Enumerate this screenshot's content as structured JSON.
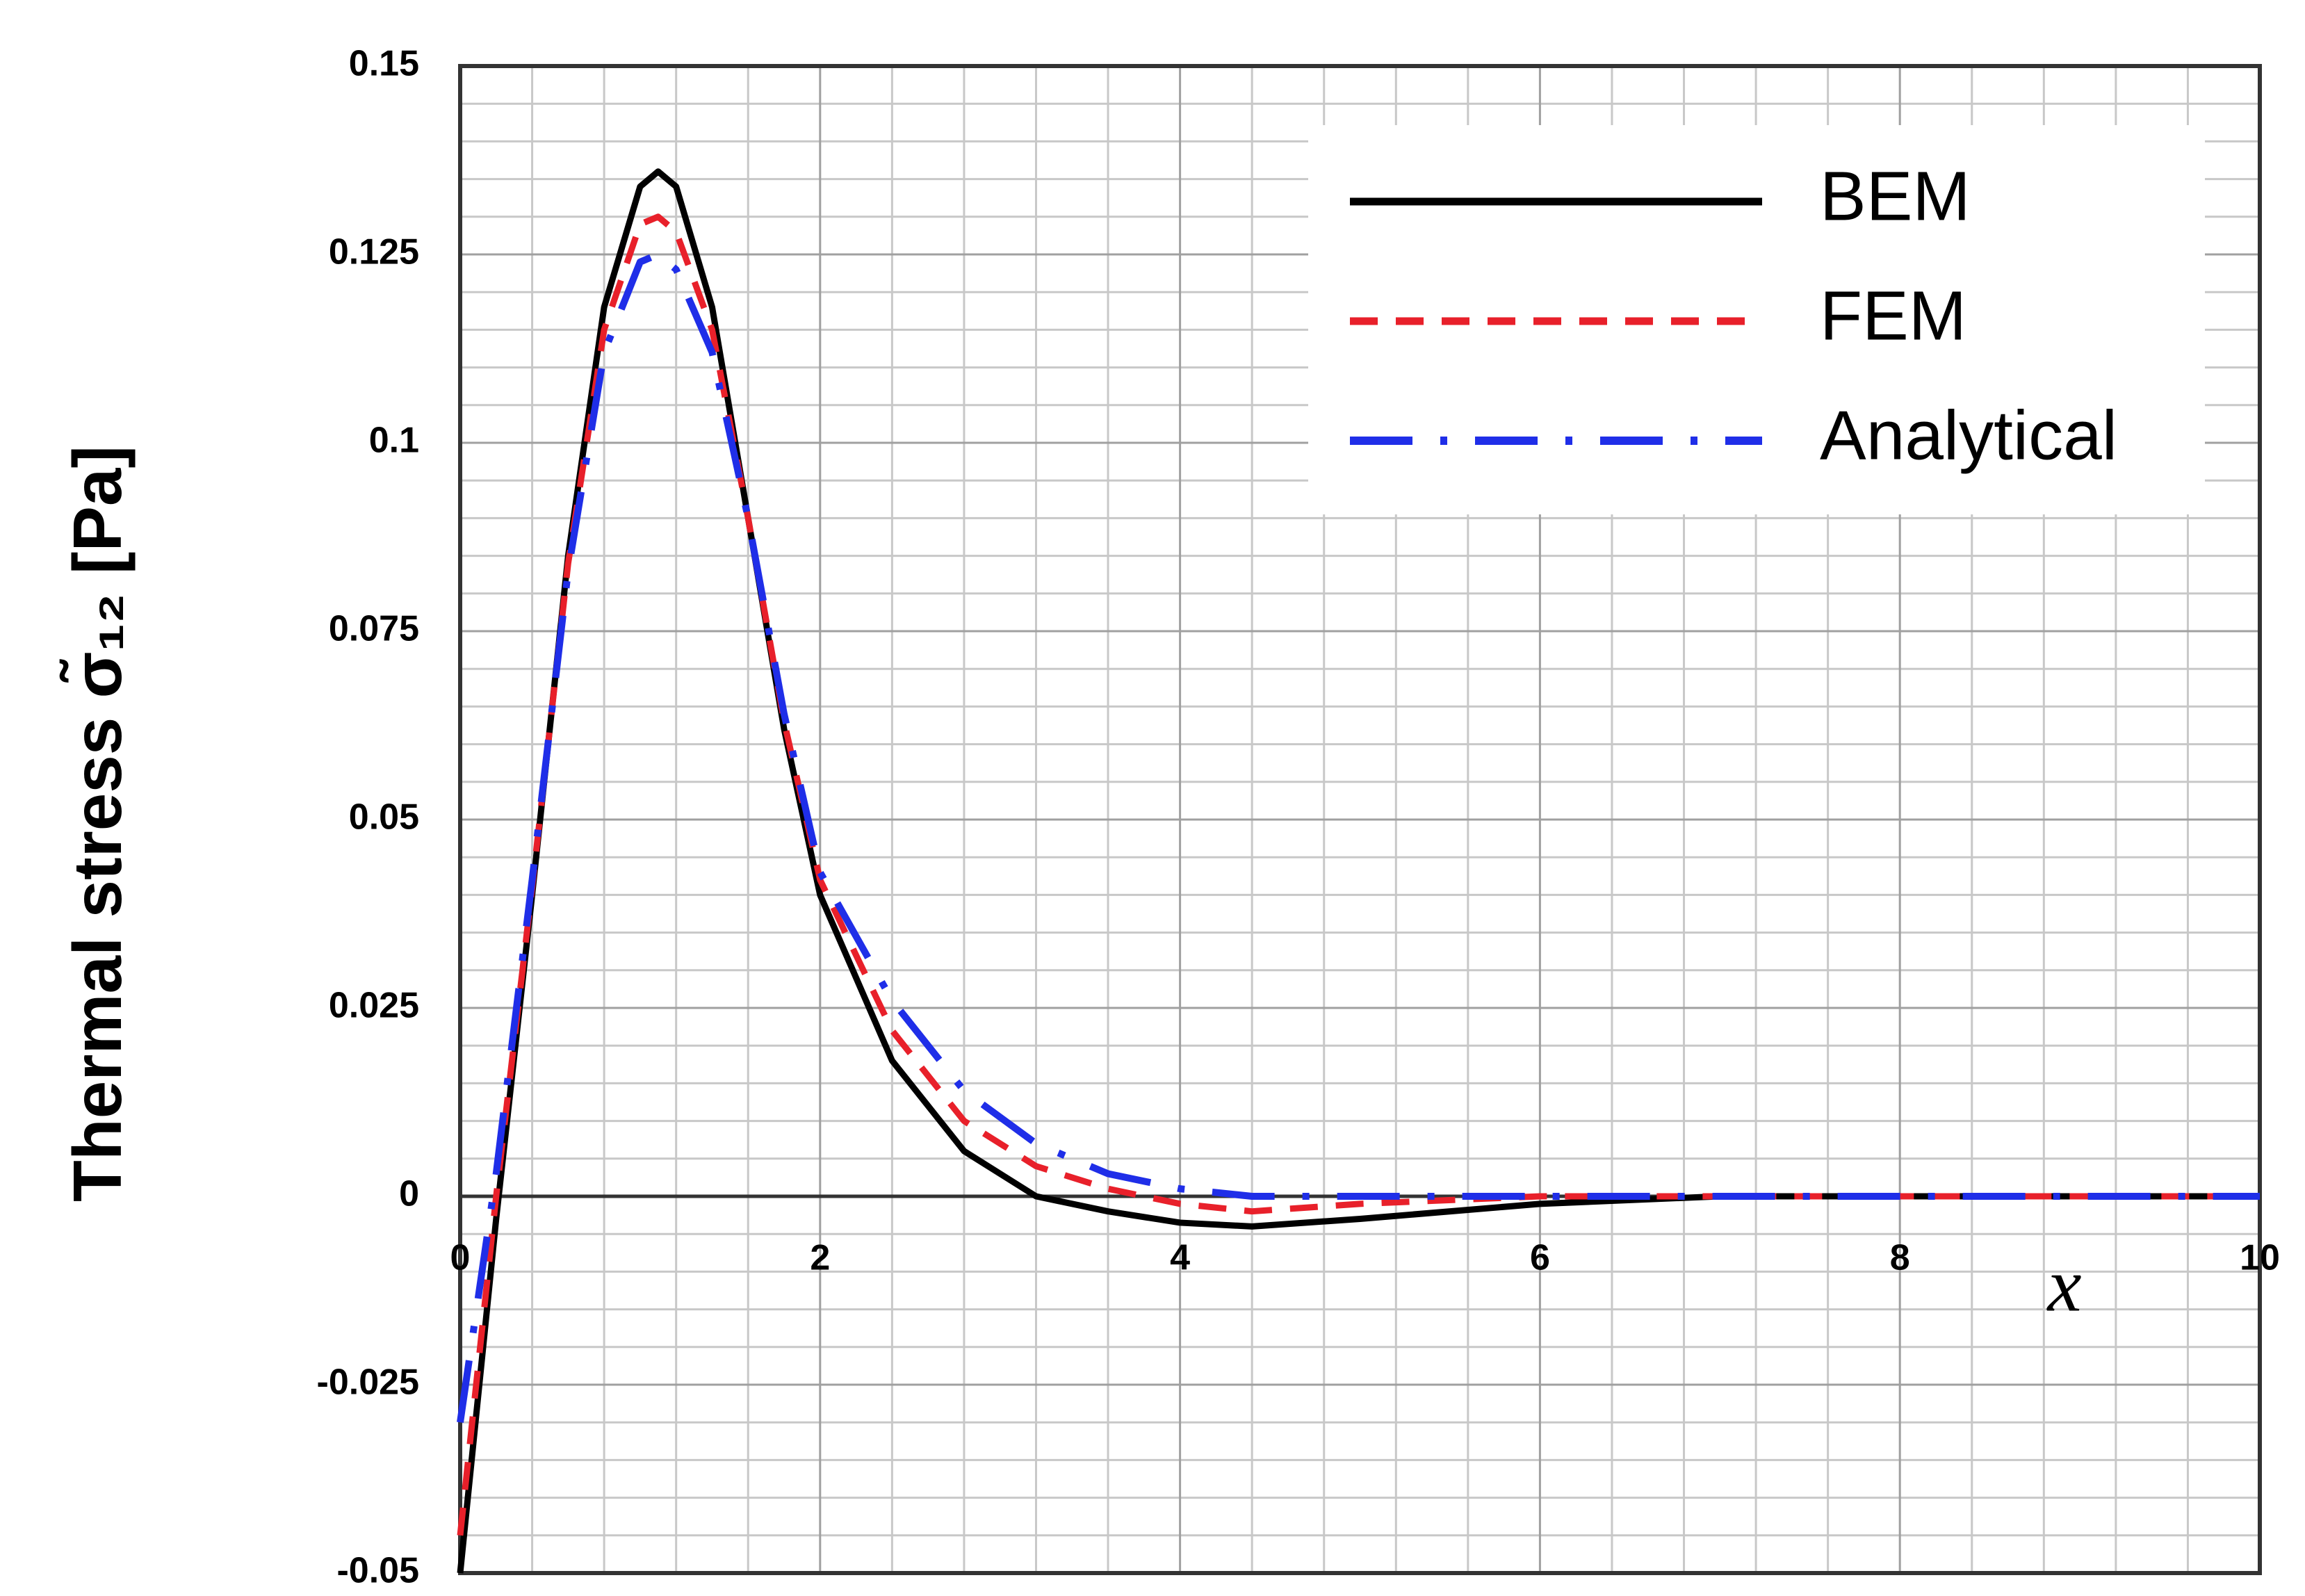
{
  "chart_data": {
    "type": "line",
    "y_label": "Thermal stress σ̃₁₂ [Pa]",
    "x_label": "x",
    "x": [
      0,
      0.2,
      0.4,
      0.6,
      0.8,
      1.0,
      1.1,
      1.2,
      1.4,
      1.6,
      1.8,
      2.0,
      2.4,
      2.8,
      3.2,
      3.6,
      4.0,
      4.4,
      5,
      6,
      7,
      8,
      9,
      10
    ],
    "series": [
      {
        "name": "BEM",
        "color": "#000000",
        "values": [
          -0.05,
          -0.003,
          0.04,
          0.085,
          0.118,
          0.134,
          0.136,
          0.134,
          0.118,
          0.09,
          0.062,
          0.04,
          0.018,
          0.006,
          0.0,
          -0.002,
          -0.0035,
          -0.004,
          -0.003,
          -0.001,
          0,
          0,
          0,
          0
        ]
      },
      {
        "name": "FEM",
        "color": "#e8202a",
        "values": [
          -0.045,
          0.0,
          0.041,
          0.084,
          0.115,
          0.129,
          0.13,
          0.128,
          0.115,
          0.09,
          0.063,
          0.042,
          0.022,
          0.01,
          0.004,
          0.001,
          -0.001,
          -0.002,
          -0.001,
          0,
          0,
          0,
          0,
          0
        ]
      },
      {
        "name": "Analytical",
        "color": "#1f2ee8",
        "values": [
          -0.03,
          0.003,
          0.042,
          0.083,
          0.112,
          0.124,
          0.125,
          0.123,
          0.112,
          0.09,
          0.064,
          0.043,
          0.026,
          0.014,
          0.007,
          0.003,
          0.001,
          0,
          0,
          0,
          0,
          0,
          0,
          0
        ]
      }
    ],
    "xlim": [
      0,
      10
    ],
    "xticks": [
      0,
      2,
      4,
      6,
      8,
      10
    ],
    "ylim": [
      -0.05,
      0.15
    ],
    "yticks": [
      0.15,
      0.125,
      0.1,
      0.075,
      0.05,
      0.025,
      0,
      -0.025,
      -0.05
    ],
    "grid": true,
    "legend": "upper right"
  }
}
